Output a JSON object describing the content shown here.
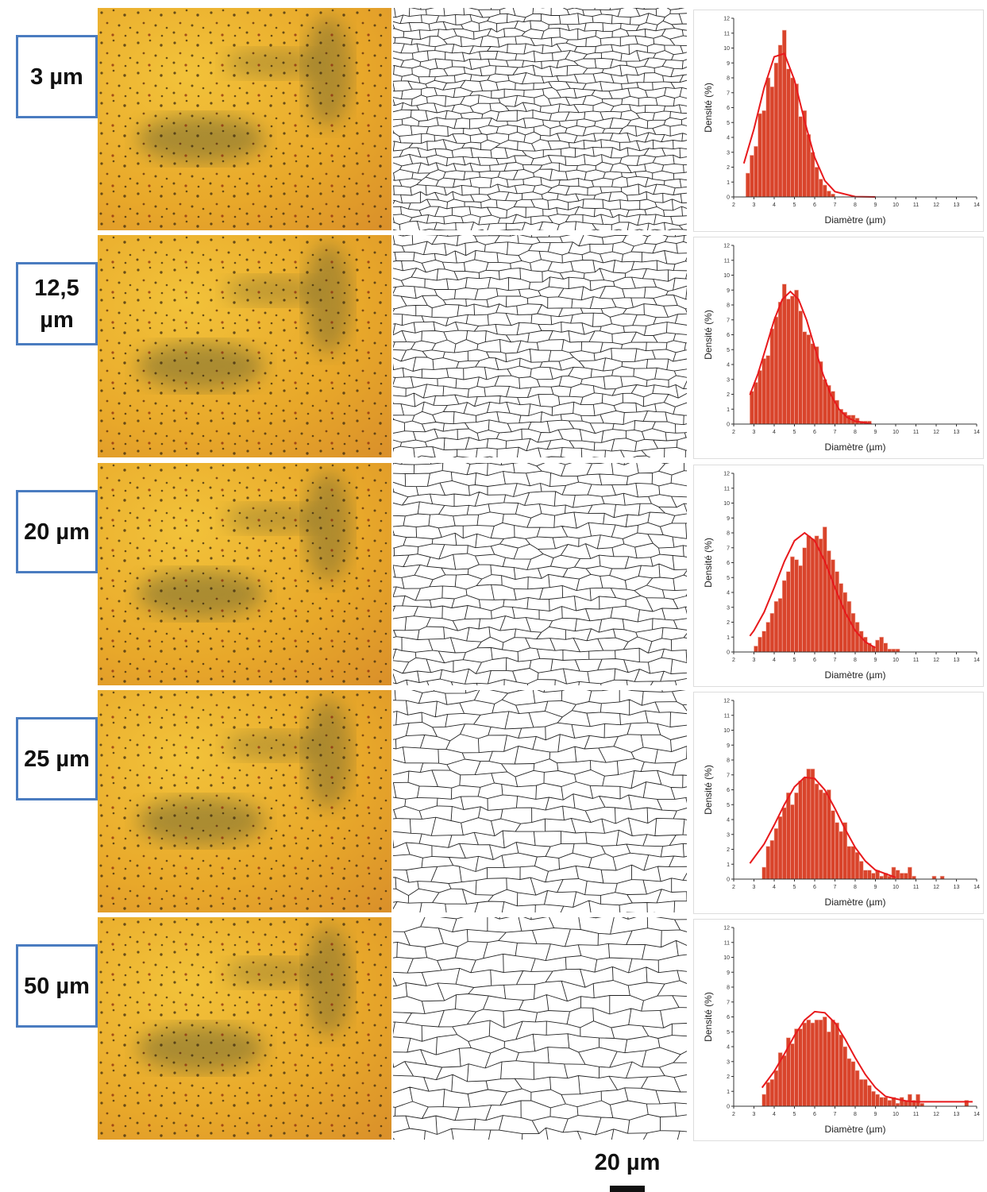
{
  "row_labels": [
    "3 µm",
    "12,5 µm",
    "20 µm",
    "25 µm",
    "50 µm"
  ],
  "scale_bar": "20 µm",
  "chart_data": [
    {
      "type": "histogram",
      "xlabel": "Diamètre (µm)",
      "ylabel": "Densité (%)",
      "color": "#d9442b",
      "bins": [
        2.6,
        2.8,
        3.0,
        3.2,
        3.4,
        3.6,
        3.8,
        4.0,
        4.2,
        4.4,
        4.6,
        4.8,
        5.0,
        5.2,
        5.4,
        5.6,
        5.8,
        6.0,
        6.2,
        6.4,
        6.6,
        6.8,
        7.0
      ],
      "values": [
        1.6,
        2.8,
        3.4,
        5.6,
        5.8,
        8.0,
        7.4,
        9.0,
        10.2,
        11.2,
        8.6,
        8.0,
        7.6,
        5.4,
        5.8,
        4.2,
        3.0,
        2.0,
        1.2,
        0.8,
        0.4,
        0.2
      ],
      "fit": {
        "color": "#e8191c",
        "x": [
          2.5,
          3,
          3.5,
          4,
          4.5,
          5,
          5.5,
          6,
          6.5,
          7,
          8,
          9
        ],
        "values": [
          2.25,
          4.56,
          7.33,
          9.41,
          9.63,
          7.85,
          5.1,
          2.65,
          1.09,
          0.36,
          0.02,
          0
        ]
      },
      "xlim": [
        2,
        14
      ],
      "xticks": [
        2,
        3,
        4,
        5,
        6,
        7,
        8,
        9,
        10,
        11,
        12,
        13,
        14
      ],
      "ylim": [
        0,
        12
      ],
      "yticks": [
        0,
        1,
        2,
        3,
        4,
        5,
        6,
        7,
        8,
        9,
        10,
        11,
        12
      ]
    },
    {
      "type": "histogram",
      "xlabel": "Diamètre (µm)",
      "ylabel": "Densité (%)",
      "color": "#d9442b",
      "bins": [
        2.8,
        3.0,
        3.2,
        3.4,
        3.6,
        3.8,
        4.0,
        4.2,
        4.4,
        4.6,
        4.8,
        5.0,
        5.2,
        5.4,
        5.6,
        5.8,
        6.0,
        6.2,
        6.4,
        6.6,
        6.8,
        7.0,
        7.2,
        7.4,
        7.6,
        7.8,
        8.0,
        8.2,
        8.4,
        8.6,
        8.8
      ],
      "values": [
        2.2,
        2.8,
        3.6,
        4.4,
        4.6,
        6.4,
        7.2,
        8.2,
        9.4,
        8.4,
        8.6,
        9.0,
        7.6,
        6.2,
        6.0,
        5.4,
        5.2,
        4.2,
        3.0,
        2.6,
        2.2,
        1.6,
        1.0,
        0.8,
        0.6,
        0.6,
        0.4,
        0.2,
        0.2,
        0.2
      ],
      "fit": {
        "color": "#e8191c",
        "x": [
          2.8,
          3.2,
          3.6,
          4.0,
          4.4,
          4.8,
          5.2,
          5.6,
          6.0,
          6.4,
          6.8,
          7.2,
          7.6,
          8.0,
          8.8
        ],
        "values": [
          1.96,
          3.38,
          5.17,
          6.99,
          8.38,
          8.9,
          8.38,
          6.99,
          5.17,
          3.38,
          1.96,
          1.0,
          0.46,
          0.19,
          0.02
        ]
      },
      "xlim": [
        2,
        14
      ],
      "xticks": [
        2,
        3,
        4,
        5,
        6,
        7,
        8,
        9,
        10,
        11,
        12,
        13,
        14
      ],
      "ylim": [
        0,
        12
      ],
      "yticks": [
        0,
        1,
        2,
        3,
        4,
        5,
        6,
        7,
        8,
        9,
        10,
        11,
        12
      ]
    },
    {
      "type": "histogram",
      "xlabel": "Diamètre (µm)",
      "ylabel": "Densité (%)",
      "color": "#d9442b",
      "bins": [
        3.0,
        3.2,
        3.4,
        3.6,
        3.8,
        4.0,
        4.2,
        4.4,
        4.6,
        4.8,
        5.0,
        5.2,
        5.4,
        5.6,
        5.8,
        6.0,
        6.2,
        6.4,
        6.6,
        6.8,
        7.0,
        7.2,
        7.4,
        7.6,
        7.8,
        8.0,
        8.2,
        8.4,
        8.6,
        8.8,
        9.0,
        9.2,
        9.4,
        9.6,
        9.8,
        10.0,
        10.2
      ],
      "values": [
        0.4,
        1.0,
        1.4,
        2.0,
        2.6,
        3.4,
        3.6,
        4.8,
        5.4,
        6.4,
        6.2,
        5.8,
        7.0,
        7.8,
        7.6,
        7.8,
        7.6,
        8.4,
        6.8,
        6.2,
        5.4,
        4.6,
        4.0,
        3.4,
        2.6,
        2.0,
        1.4,
        1.0,
        0.6,
        0.4,
        0.8,
        1.0,
        0.6,
        0.2,
        0.2,
        0.2
      ],
      "fit": {
        "color": "#e8191c",
        "x": [
          2.8,
          3,
          3.5,
          4,
          4.5,
          5,
          5.5,
          6,
          6.5,
          7,
          7.5,
          8,
          8.5,
          9
        ],
        "values": [
          1.08,
          1.44,
          2.67,
          4.32,
          6.08,
          7.47,
          8.0,
          7.47,
          6.08,
          4.32,
          2.67,
          1.44,
          0.68,
          0.28
        ]
      },
      "xlim": [
        2,
        14
      ],
      "xticks": [
        2,
        3,
        4,
        5,
        6,
        7,
        8,
        9,
        10,
        11,
        12,
        13,
        14
      ],
      "ylim": [
        0,
        12
      ],
      "yticks": [
        0,
        1,
        2,
        3,
        4,
        5,
        6,
        7,
        8,
        9,
        10,
        11,
        12
      ]
    },
    {
      "type": "histogram",
      "xlabel": "Diamètre (µm)",
      "ylabel": "Densité (%)",
      "color": "#d9442b",
      "bins": [
        3.4,
        3.6,
        3.8,
        4.0,
        4.2,
        4.4,
        4.6,
        4.8,
        5.0,
        5.2,
        5.4,
        5.6,
        5.8,
        6.0,
        6.2,
        6.4,
        6.6,
        6.8,
        7.0,
        7.2,
        7.4,
        7.6,
        7.8,
        8.0,
        8.2,
        8.4,
        8.6,
        8.8,
        9.0,
        9.2,
        9.4,
        9.6,
        9.8,
        10.0,
        10.2,
        10.4,
        10.6,
        10.8,
        11.0,
        11.2,
        11.4,
        11.6,
        11.8,
        12.0,
        12.2,
        12.4
      ],
      "values": [
        0.8,
        2.2,
        2.6,
        3.4,
        4.2,
        4.8,
        5.8,
        5.0,
        5.8,
        6.6,
        6.8,
        7.4,
        7.4,
        6.4,
        6.0,
        5.8,
        6.0,
        4.6,
        3.8,
        3.2,
        3.8,
        2.2,
        2.2,
        1.8,
        1.2,
        0.6,
        0.6,
        0.4,
        0.6,
        0.2,
        0.4,
        0.2,
        0.8,
        0.6,
        0.4,
        0.4,
        0.8,
        0.2,
        0,
        0,
        0,
        0,
        0.2,
        0,
        0.2
      ],
      "fit": {
        "color": "#e8191c",
        "x": [
          2.8,
          3.5,
          4,
          4.5,
          5,
          5.5,
          6,
          6.5,
          7,
          7.5,
          8,
          8.5,
          9,
          10
        ],
        "values": [
          1.06,
          2.35,
          3.63,
          5.01,
          6.19,
          6.84,
          6.76,
          5.99,
          4.74,
          3.36,
          2.13,
          1.21,
          0.61,
          0.11
        ]
      },
      "xlim": [
        2,
        14
      ],
      "xticks": [
        2,
        3,
        4,
        5,
        6,
        7,
        8,
        9,
        10,
        11,
        12,
        13,
        14
      ],
      "ylim": [
        0,
        12
      ],
      "yticks": [
        0,
        1,
        2,
        3,
        4,
        5,
        6,
        7,
        8,
        9,
        10,
        11,
        12
      ]
    },
    {
      "type": "histogram",
      "xlabel": "Diamètre (µm)",
      "ylabel": "Densité (%)",
      "color": "#d9442b",
      "bins": [
        3.4,
        3.6,
        3.8,
        4.0,
        4.2,
        4.4,
        4.6,
        4.8,
        5.0,
        5.2,
        5.4,
        5.6,
        5.8,
        6.0,
        6.2,
        6.4,
        6.6,
        6.8,
        7.0,
        7.2,
        7.4,
        7.6,
        7.8,
        8.0,
        8.2,
        8.4,
        8.6,
        8.8,
        9.0,
        9.2,
        9.4,
        9.6,
        9.8,
        10.0,
        10.2,
        10.4,
        10.6,
        10.8,
        11.0,
        11.2,
        11.4,
        11.6,
        11.8,
        12.0,
        12.2,
        12.4,
        12.6,
        12.8,
        13.0,
        13.2,
        13.4,
        13.6
      ],
      "values": [
        0.8,
        1.6,
        1.8,
        2.4,
        3.6,
        3.4,
        4.6,
        4.2,
        5.2,
        5.2,
        5.6,
        5.8,
        5.6,
        5.8,
        5.8,
        6.0,
        5.0,
        5.8,
        5.6,
        4.8,
        4.0,
        3.2,
        3.0,
        2.4,
        1.8,
        1.8,
        1.4,
        1.0,
        0.8,
        0.6,
        0.6,
        0.4,
        0.6,
        0.2,
        0.6,
        0.4,
        0.8,
        0.4,
        0.8,
        0.2,
        0,
        0,
        0,
        0,
        0,
        0,
        0,
        0,
        0,
        0,
        0.4
      ],
      "fit": {
        "color": "#e8191c",
        "x": [
          3.4,
          4,
          4.5,
          5,
          5.5,
          6,
          6.5,
          7,
          7.5,
          8,
          8.5,
          9,
          9.5,
          10,
          10.5,
          11,
          13.8
        ],
        "values": [
          1.25,
          2.34,
          3.51,
          4.74,
          5.78,
          6.35,
          6.28,
          5.6,
          4.5,
          3.26,
          2.13,
          1.25,
          0.66,
          0.5,
          0.35,
          0.3,
          0.3
        ]
      },
      "xlim": [
        2,
        14
      ],
      "xticks": [
        2,
        3,
        4,
        5,
        6,
        7,
        8,
        9,
        10,
        11,
        12,
        13,
        14
      ],
      "ylim": [
        0,
        12
      ],
      "yticks": [
        0,
        1,
        2,
        3,
        4,
        5,
        6,
        7,
        8,
        9,
        10,
        11,
        12
      ]
    }
  ]
}
